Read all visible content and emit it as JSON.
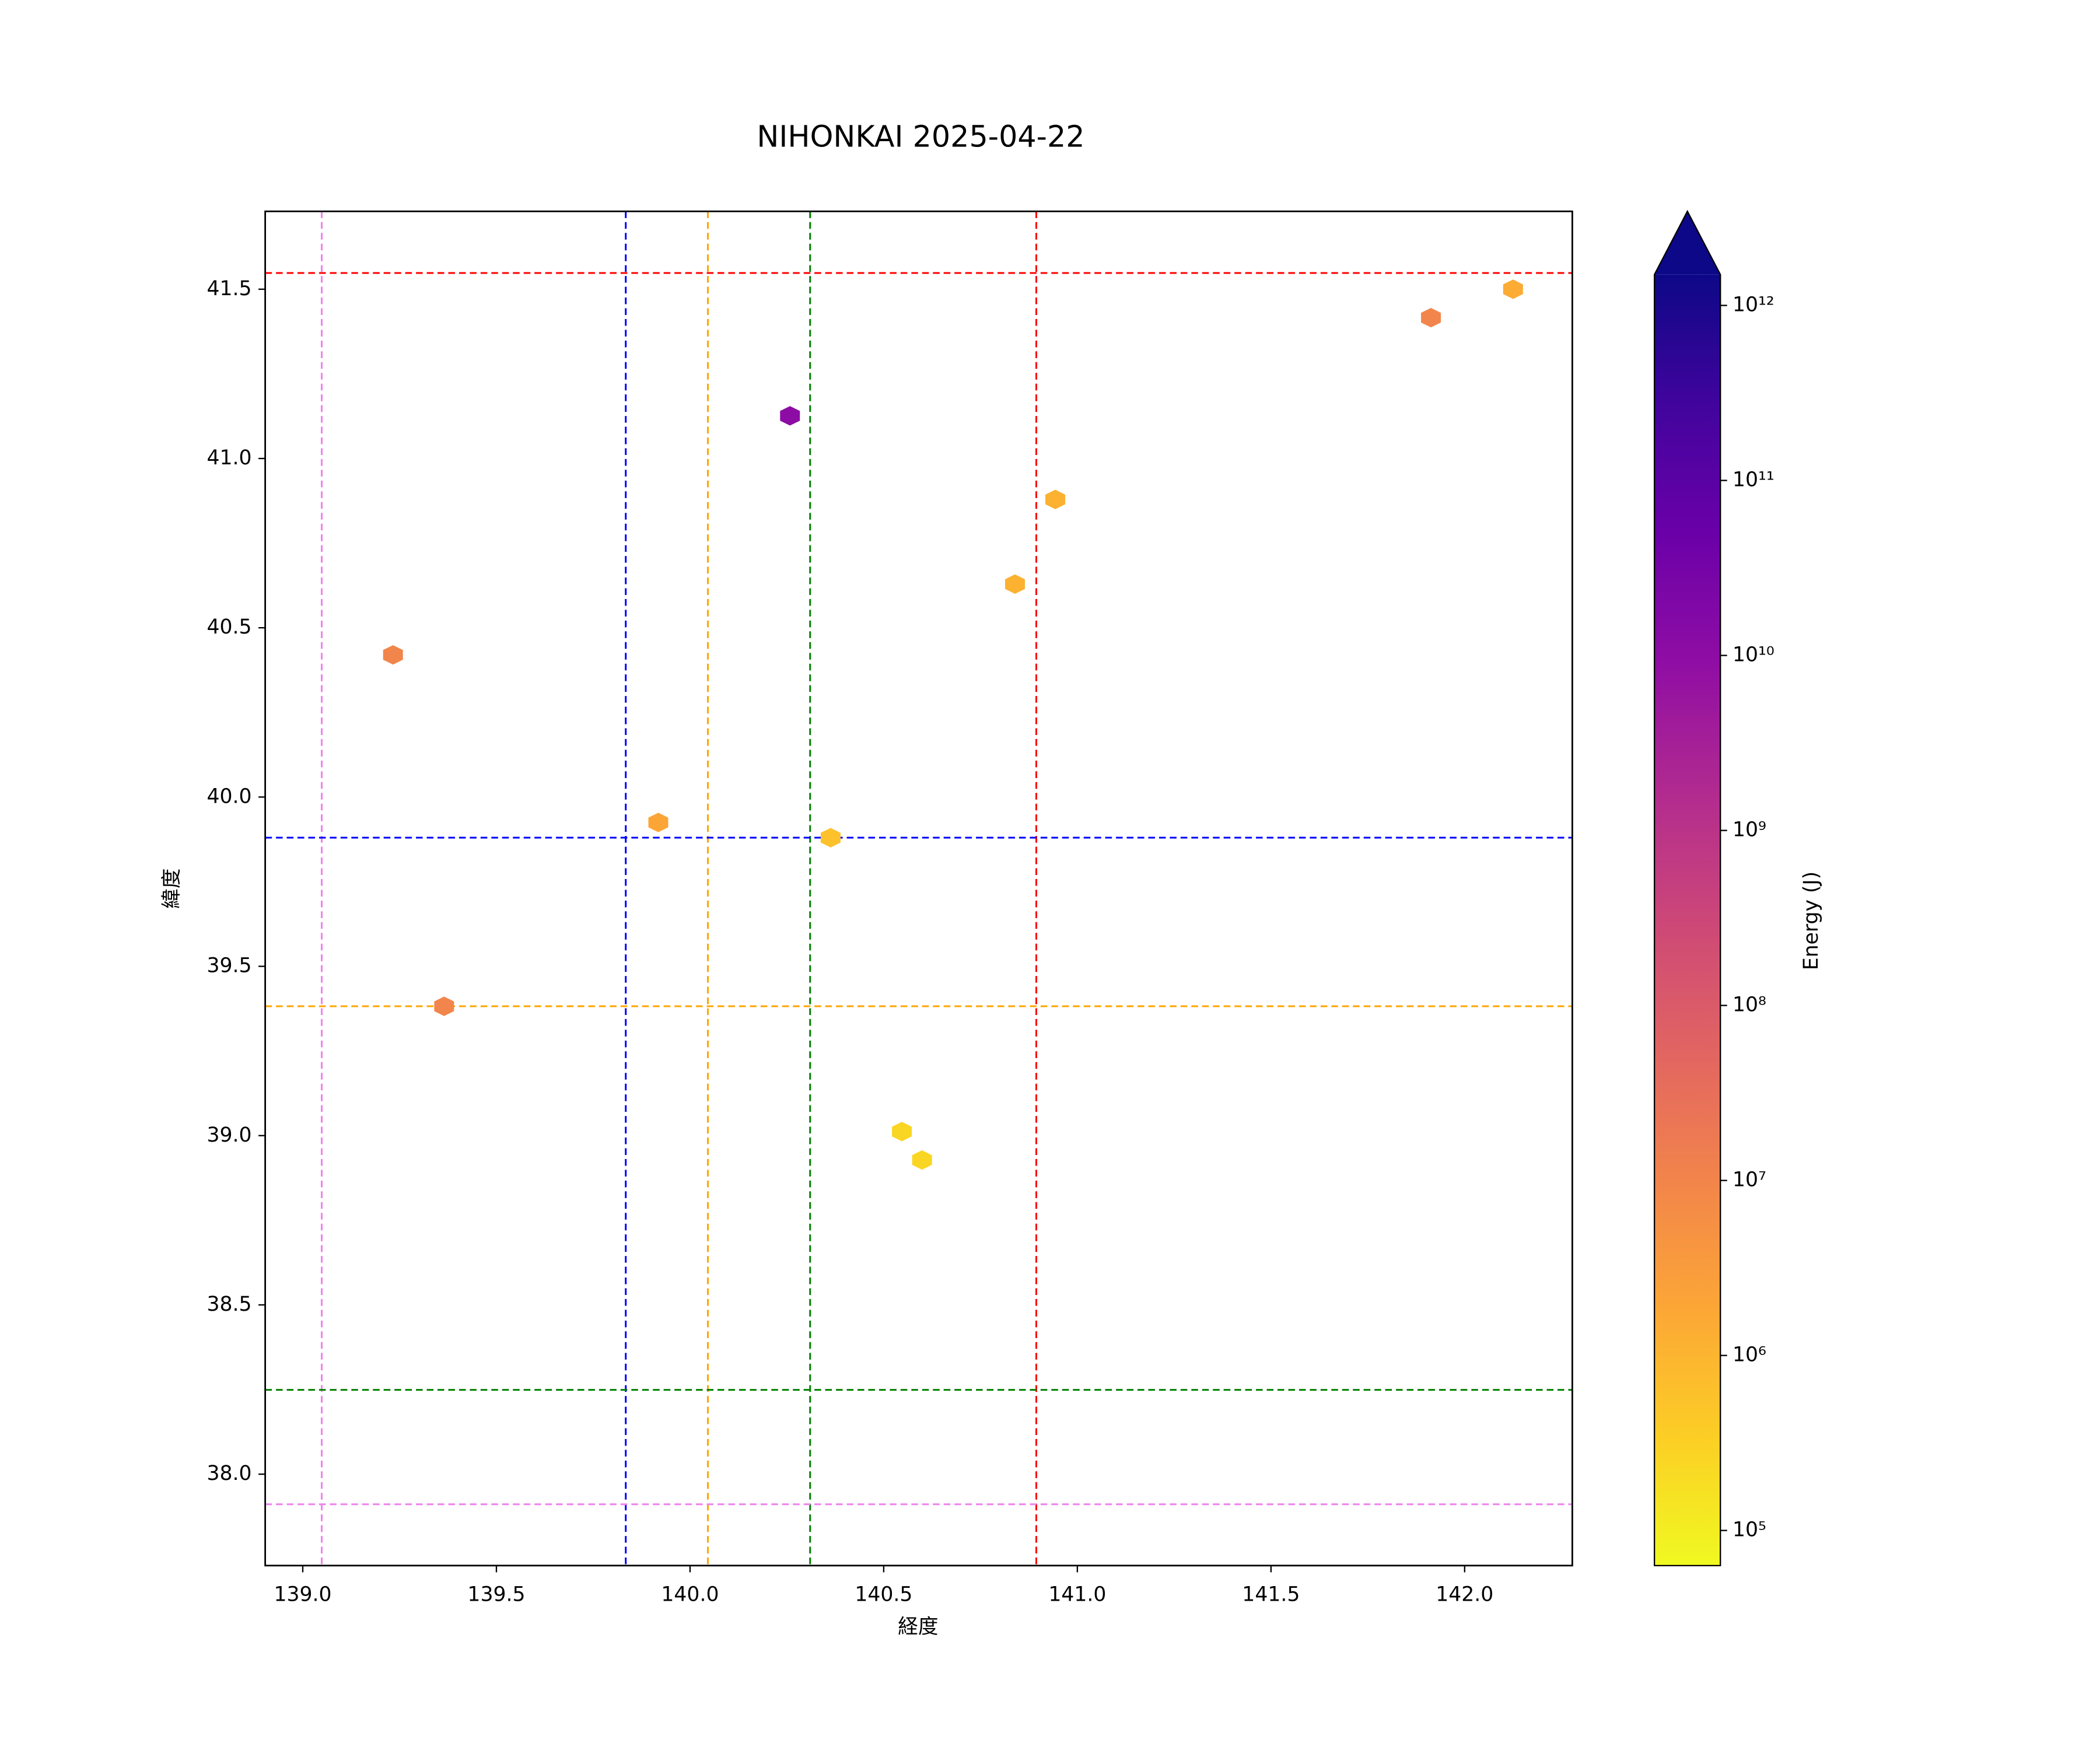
{
  "chart_data": {
    "type": "hexbin",
    "title": "NIHONKAI 2025-04-22",
    "xlabel": "経度",
    "ylabel": "緯度",
    "colorbar_label": "Energy (J)",
    "x": [
      142.125,
      141.913,
      140.258,
      140.943,
      140.839,
      139.233,
      139.918,
      140.363,
      139.365,
      140.547,
      140.599
    ],
    "y": [
      41.5,
      41.416,
      41.126,
      40.879,
      40.629,
      40.42,
      39.925,
      39.88,
      39.382,
      39.012,
      38.928
    ],
    "energy": [
      1500000,
      10000000,
      10000000000,
      1200000,
      1200000,
      10000000,
      2000000,
      600000,
      10000000,
      250000,
      250000
    ],
    "xlim": [
      138.903,
      142.278
    ],
    "ylim": [
      37.73,
      41.73
    ],
    "xticks": [
      {
        "value": 139,
        "label": "139.0"
      },
      139.5,
      {
        "value": 140,
        "label": "140.0"
      },
      140.5,
      {
        "value": 141,
        "label": "141.0"
      },
      141.5,
      {
        "value": 142,
        "label": "142.0"
      }
    ],
    "yticks": [
      {
        "value": 38,
        "label": "38.0"
      },
      38.5,
      {
        "value": 39,
        "label": "39.0"
      },
      39.5,
      {
        "value": 40,
        "label": "40.0"
      },
      40.5,
      {
        "value": 41,
        "label": "41.0"
      },
      41.5
    ],
    "color_scale": "log",
    "colormap": "plasma",
    "clim": [
      63000,
      1500000000000
    ],
    "cticks": [
      {
        "value": 100000,
        "label": "10⁵"
      },
      {
        "value": 1000000,
        "label": "10⁶"
      },
      {
        "value": 10000000,
        "label": "10⁷"
      },
      {
        "value": 100000000,
        "label": "10⁸"
      },
      {
        "value": 1000000000,
        "label": "10⁹"
      },
      {
        "value": 10000000000,
        "label": "10¹⁰"
      },
      {
        "value": 100000000000,
        "label": "10¹¹"
      },
      {
        "value": 1000000000000,
        "label": "10¹²"
      }
    ],
    "vlines": [
      {
        "x": 139.049,
        "color": "violet"
      },
      {
        "x": 139.834,
        "color": "blue"
      },
      {
        "x": 140.046,
        "color": "orange"
      },
      {
        "x": 140.31,
        "color": "green"
      },
      {
        "x": 140.894,
        "color": "red"
      }
    ],
    "hlines": [
      {
        "y": 41.548,
        "color": "red"
      },
      {
        "y": 39.88,
        "color": "blue"
      },
      {
        "y": 39.382,
        "color": "orange"
      },
      {
        "y": 38.249,
        "color": "green"
      },
      {
        "y": 37.911,
        "color": "violet"
      }
    ]
  }
}
